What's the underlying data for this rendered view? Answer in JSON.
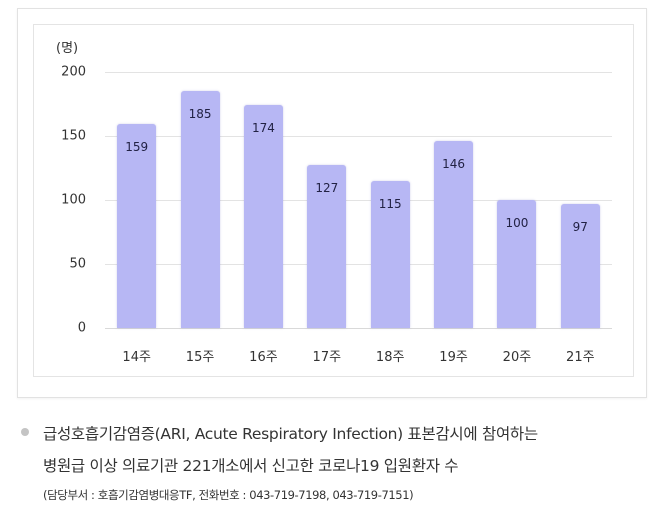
{
  "chart_data": {
    "type": "bar",
    "title": "",
    "xlabel": "",
    "ylabel": "(명)",
    "ylim": [
      0,
      200
    ],
    "yticks": [
      0,
      50,
      100,
      150,
      200
    ],
    "grid": true,
    "legend": null,
    "bar_color": "#b7b7f4",
    "categories": [
      "14주",
      "15주",
      "16주",
      "17주",
      "18주",
      "19주",
      "20주",
      "21주"
    ],
    "values": [
      159,
      185,
      174,
      127,
      115,
      146,
      100,
      97
    ],
    "data_labels": [
      "159",
      "185",
      "174",
      "127",
      "115",
      "146",
      "100",
      "97"
    ]
  },
  "chart": {
    "unit_label": "(명)",
    "yticks": [
      "200",
      "150",
      "100",
      "50",
      "0"
    ]
  },
  "caption": {
    "line1": "급성호흡기감염증(ARI, Acute Respiratory Infection) 표본감시에 참여하는",
    "line2": "병원급 이상 의료기관 221개소에서 신고한 코로나19 입원환자 수",
    "line3": "(담당부서 : 호흡기감염병대응TF, 전화번호 : 043-719-7198, 043-719-7151)"
  }
}
